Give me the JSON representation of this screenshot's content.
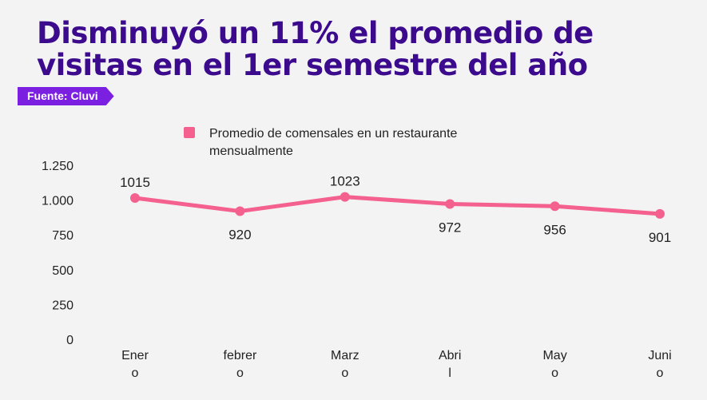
{
  "title": {
    "line1": "Disminuyó un 11% el promedio de",
    "line2": "visitas en el 1er semestre del año"
  },
  "source": "Fuente: Cluvi",
  "colors": {
    "title": "#3c0a8c",
    "tag": "#7b1fe0",
    "series": "#f4618e"
  },
  "chart_data": {
    "type": "line",
    "categories": [
      [
        "Ener",
        "o"
      ],
      [
        "febrer",
        "o"
      ],
      [
        "Marz",
        "o"
      ],
      [
        "Abri",
        "l"
      ],
      [
        "May",
        "o"
      ],
      [
        "Juni",
        "o"
      ]
    ],
    "series": [
      {
        "name": "Promedio de comensales en un restaurante mensualmente",
        "legend_lines": [
          "Promedio de comensales en un restaurante",
          "mensualmente"
        ],
        "values": [
          1015,
          920,
          1023,
          972,
          956,
          901
        ],
        "labels": [
          "1015",
          "920",
          "1023",
          "972",
          "956",
          "901"
        ],
        "label_position": [
          "above",
          "below",
          "above",
          "below",
          "below",
          "below"
        ]
      }
    ],
    "yticks": [
      0,
      250,
      500,
      750,
      1000,
      1250
    ],
    "ytick_labels": [
      "0",
      "250",
      "500",
      "750",
      "1.000",
      "1.250"
    ],
    "ylim": [
      0,
      1250
    ],
    "grid": false,
    "legend_position": "top"
  }
}
